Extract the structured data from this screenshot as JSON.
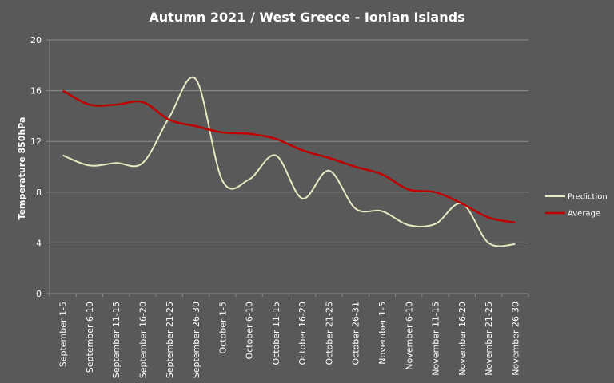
{
  "chart_data": {
    "type": "line",
    "title": "Autumn 2021 / West Greece - Ionian Islands",
    "xlabel": "",
    "ylabel": "Temperature 850hPa",
    "ylim": [
      0,
      20
    ],
    "yticks": [
      0,
      4,
      8,
      12,
      16,
      20
    ],
    "grid": true,
    "legend_position": "right",
    "categories": [
      "September 1-5",
      "September 6-10",
      "September 11-15",
      "September 16-20",
      "September 21-25",
      "September 26-30",
      "October 1-5",
      "October 6-10",
      "October 11-15",
      "October 16-20",
      "October 21-25",
      "October 26-31",
      "November 1-5",
      "November 6-10",
      "November 11-15",
      "November 16-20",
      "November 21-25",
      "November 26-30"
    ],
    "series": [
      {
        "name": "Prediction",
        "color": "#e8e8c0",
        "values": [
          10.9,
          10.1,
          10.3,
          10.3,
          13.9,
          16.9,
          8.9,
          9.0,
          10.9,
          7.5,
          9.7,
          6.7,
          6.5,
          5.4,
          5.5,
          7.1,
          4.0,
          3.9
        ]
      },
      {
        "name": "Average",
        "color": "#c00000",
        "values": [
          16.0,
          14.9,
          14.9,
          15.1,
          13.7,
          13.2,
          12.7,
          12.6,
          12.2,
          11.3,
          10.7,
          10.0,
          9.4,
          8.2,
          8.0,
          7.1,
          6.0,
          5.6
        ]
      }
    ]
  }
}
